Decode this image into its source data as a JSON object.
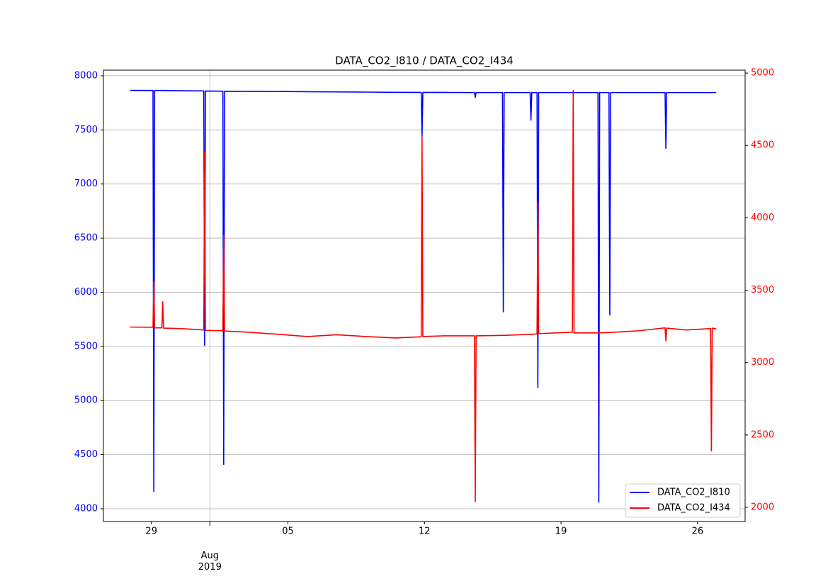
{
  "chart_data": {
    "type": "line",
    "title": "DATA_CO2_I810 / DATA_CO2_I434",
    "x": [
      "2019-07-27T22:00",
      "2019-07-29T02:00",
      "2019-07-29T03:00",
      "2019-07-29T04:00",
      "2019-07-29T13:00",
      "2019-07-29T14:00",
      "2019-07-29T15:00",
      "2019-07-30T12:00",
      "2019-07-31T16:30",
      "2019-07-31T17:30",
      "2019-07-31T18:30",
      "2019-08-01T16:00",
      "2019-08-01T17:00",
      "2019-08-01T18:00",
      "2019-08-03T00:00",
      "2019-08-04T12:00",
      "2019-08-06T00:00",
      "2019-08-07T12:00",
      "2019-08-09T00:00",
      "2019-08-10T12:00",
      "2019-08-11T20:00",
      "2019-08-11T21:00",
      "2019-08-11T22:00",
      "2019-08-13T00:00",
      "2019-08-14T13:30",
      "2019-08-14T14:30",
      "2019-08-14T15:30",
      "2019-08-16T00:00",
      "2019-08-16T01:00",
      "2019-08-16T02:00",
      "2019-08-17T10:00",
      "2019-08-17T11:00",
      "2019-08-17T12:00",
      "2019-08-17T18:30",
      "2019-08-17T19:30",
      "2019-08-17T20:30",
      "2019-08-19T14:00",
      "2019-08-19T15:00",
      "2019-08-19T16:00",
      "2019-08-20T21:30",
      "2019-08-20T22:30",
      "2019-08-20T23:30",
      "2019-08-21T11:00",
      "2019-08-21T12:00",
      "2019-08-21T13:00",
      "2019-08-23T00:00",
      "2019-08-24T08:00",
      "2019-08-24T09:00",
      "2019-08-24T10:00",
      "2019-08-25T10:00",
      "2019-08-26T16:00",
      "2019-08-26T17:00",
      "2019-08-26T18:00",
      "2019-08-26T23:00"
    ],
    "series": [
      {
        "name": "DATA_CO2_I810",
        "color": "#0000ff",
        "axis": "y",
        "values": [
          7865,
          7864,
          4160,
          7864,
          7864,
          7864,
          7864,
          7862,
          7860,
          5510,
          7859,
          7858,
          4410,
          7857,
          7856,
          7855,
          7853,
          7851,
          7849,
          7847,
          7846,
          7440,
          7846,
          7846,
          7845,
          7800,
          7845,
          7845,
          5820,
          7845,
          7845,
          7590,
          7845,
          7845,
          5120,
          7845,
          7845,
          7846,
          7845,
          7845,
          4060,
          7845,
          7845,
          5790,
          7845,
          7845,
          7845,
          7330,
          7845,
          7845,
          7845,
          7845,
          7845,
          7845
        ]
      },
      {
        "name": "DATA_CO2_I434",
        "color": "#ff0000",
        "axis": "y2",
        "values": [
          3245,
          3244,
          3560,
          3240,
          3240,
          3420,
          3238,
          3235,
          3225,
          4460,
          3222,
          3220,
          3880,
          3218,
          3210,
          3195,
          3180,
          3192,
          3180,
          3170,
          3178,
          4560,
          3180,
          3185,
          3185,
          2040,
          3185,
          3188,
          3188,
          3188,
          3195,
          3195,
          3195,
          3198,
          4110,
          3200,
          3210,
          4880,
          3205,
          3205,
          3205,
          3205,
          3208,
          3208,
          3208,
          3220,
          3240,
          3150,
          3238,
          3225,
          3235,
          2390,
          3238,
          3232
        ]
      }
    ],
    "xlim": [
      "2019-07-26T13:00",
      "2019-08-28T10:30"
    ],
    "xticks": [
      {
        "value": "2019-08-01T00:00",
        "label": "Aug\n2019"
      }
    ],
    "xminorticks": [
      {
        "value": "2019-07-29T00:00",
        "label": "29"
      },
      {
        "value": "2019-08-05T00:00",
        "label": "05"
      },
      {
        "value": "2019-08-12T00:00",
        "label": "12"
      },
      {
        "value": "2019-08-19T00:00",
        "label": "19"
      },
      {
        "value": "2019-08-26T00:00",
        "label": "26"
      }
    ],
    "ylim": [
      3882,
      8052
    ],
    "yticks": [
      4000,
      4500,
      5000,
      5500,
      6000,
      6500,
      7000,
      7500,
      8000
    ],
    "ycolor": "#0000ff",
    "y2lim": [
      1902,
      5020
    ],
    "y2ticks": [
      2000,
      2500,
      3000,
      3500,
      4000,
      4500,
      5000
    ],
    "y2color": "#ff0000",
    "grid": true,
    "legend": "lower right"
  }
}
